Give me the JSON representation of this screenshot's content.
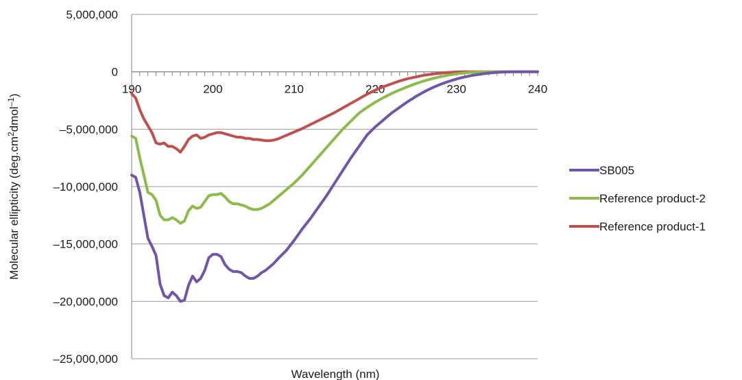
{
  "chart_data": {
    "type": "line",
    "xlabel": "Wavelength (nm)",
    "ylabel_main": "Molecular ellipticity (deg.cm",
    "ylabel_sup1": "2",
    "ylabel_mid": "dmol",
    "ylabel_sup2": "–1",
    "ylabel_end": ")",
    "xlim": [
      190,
      240
    ],
    "ylim": [
      -25000000,
      5000000
    ],
    "x_ticks": [
      190,
      200,
      210,
      220,
      230,
      240
    ],
    "x_tick_labels": [
      "190",
      "200",
      "210",
      "220",
      "230",
      "240"
    ],
    "y_ticks": [
      5000000,
      0,
      -5000000,
      -10000000,
      -15000000,
      -20000000,
      -25000000
    ],
    "y_tick_labels": [
      "5,000,000",
      "0",
      "–5,000,000",
      "–10,000,000",
      "–15,000,000",
      "–20,000,000",
      "–25,000,000"
    ],
    "grid": true,
    "legend_position": "right",
    "series": [
      {
        "name": "SB005",
        "color": "#7055a8",
        "x": [
          190,
          190.5,
          191,
          191.5,
          192,
          192.5,
          193,
          193.5,
          194,
          194.5,
          195,
          195.5,
          196,
          196.5,
          197,
          197.5,
          198,
          198.5,
          199,
          199.5,
          200,
          200.5,
          201,
          201.5,
          202,
          202.5,
          203,
          203.5,
          204,
          204.5,
          205,
          205.5,
          206,
          206.5,
          207,
          207.5,
          208,
          209,
          210,
          211,
          212,
          213,
          214,
          215,
          216,
          217,
          218,
          219,
          220,
          221,
          222,
          223,
          224,
          225,
          226,
          227,
          228,
          229,
          230,
          231,
          232,
          233,
          234,
          235,
          236,
          237,
          238,
          239,
          240
        ],
        "y": [
          -9000000,
          -9200000,
          -10500000,
          -12500000,
          -14500000,
          -15200000,
          -16000000,
          -18500000,
          -19500000,
          -19700000,
          -19200000,
          -19500000,
          -20000000,
          -19900000,
          -18600000,
          -17800000,
          -18300000,
          -18000000,
          -17300000,
          -16200000,
          -15900000,
          -15900000,
          -16100000,
          -16800000,
          -17200000,
          -17400000,
          -17400000,
          -17500000,
          -17800000,
          -18000000,
          -18000000,
          -17800000,
          -17500000,
          -17300000,
          -17000000,
          -16700000,
          -16300000,
          -15600000,
          -14700000,
          -13700000,
          -12800000,
          -11800000,
          -10800000,
          -9700000,
          -8600000,
          -7500000,
          -6500000,
          -5500000,
          -4800000,
          -4200000,
          -3600000,
          -3100000,
          -2600000,
          -2150000,
          -1750000,
          -1400000,
          -1100000,
          -850000,
          -630000,
          -450000,
          -310000,
          -200000,
          -110000,
          -50000,
          -15000,
          0,
          0,
          0,
          0
        ]
      },
      {
        "name": "Reference product-2",
        "color": "#8cbb4a",
        "x": [
          190,
          190.5,
          191,
          191.5,
          192,
          192.5,
          193,
          193.5,
          194,
          194.5,
          195,
          195.5,
          196,
          196.5,
          197,
          197.5,
          198,
          198.5,
          199,
          199.5,
          200,
          200.5,
          201,
          201.5,
          202,
          202.5,
          203,
          203.5,
          204,
          204.5,
          205,
          205.5,
          206,
          206.5,
          207,
          207.5,
          208,
          209,
          210,
          211,
          212,
          213,
          214,
          215,
          216,
          217,
          218,
          219,
          220,
          221,
          222,
          223,
          224,
          225,
          226,
          227,
          228,
          229,
          230,
          231,
          232,
          233,
          234,
          235,
          236,
          237,
          238,
          239,
          240
        ],
        "y": [
          -5600000,
          -5800000,
          -7500000,
          -9000000,
          -10500000,
          -10700000,
          -11200000,
          -12500000,
          -12900000,
          -12900000,
          -12700000,
          -12900000,
          -13200000,
          -13000000,
          -12100000,
          -11700000,
          -11900000,
          -11800000,
          -11300000,
          -10800000,
          -10700000,
          -10700000,
          -10600000,
          -10900000,
          -11300000,
          -11500000,
          -11500000,
          -11600000,
          -11700000,
          -11900000,
          -12000000,
          -12000000,
          -11900000,
          -11700000,
          -11500000,
          -11200000,
          -10900000,
          -10300000,
          -9700000,
          -9000000,
          -8200000,
          -7400000,
          -6600000,
          -5800000,
          -5000000,
          -4300000,
          -3600000,
          -3100000,
          -2650000,
          -2250000,
          -1900000,
          -1580000,
          -1300000,
          -1030000,
          -800000,
          -600000,
          -430000,
          -290000,
          -180000,
          -100000,
          -40000,
          -10000,
          0,
          0,
          0,
          0,
          0,
          0,
          0
        ]
      },
      {
        "name": "Reference product-1",
        "color": "#c0504d",
        "x": [
          190,
          190.5,
          191,
          191.5,
          192,
          192.5,
          193,
          193.5,
          194,
          194.5,
          195,
          195.5,
          196,
          196.5,
          197,
          197.5,
          198,
          198.5,
          199,
          199.5,
          200,
          200.5,
          201,
          201.5,
          202,
          202.5,
          203,
          203.5,
          204,
          204.5,
          205,
          205.5,
          206,
          206.5,
          207,
          207.5,
          208,
          209,
          210,
          211,
          212,
          213,
          214,
          215,
          216,
          217,
          218,
          219,
          220,
          221,
          222,
          223,
          224,
          225,
          226,
          227,
          228,
          229,
          230,
          231,
          232,
          233,
          234,
          235,
          236,
          237,
          238,
          239,
          240
        ],
        "y": [
          -1900000,
          -2300000,
          -3300000,
          -4100000,
          -4700000,
          -5300000,
          -6200000,
          -6300000,
          -6200000,
          -6500000,
          -6500000,
          -6700000,
          -7000000,
          -6500000,
          -5900000,
          -5600000,
          -5500000,
          -5800000,
          -5700000,
          -5500000,
          -5400000,
          -5300000,
          -5300000,
          -5400000,
          -5500000,
          -5600000,
          -5700000,
          -5700000,
          -5800000,
          -5800000,
          -5900000,
          -5900000,
          -5950000,
          -6000000,
          -6000000,
          -5950000,
          -5850000,
          -5550000,
          -5250000,
          -4950000,
          -4600000,
          -4250000,
          -3900000,
          -3550000,
          -3150000,
          -2750000,
          -2350000,
          -1950000,
          -1600000,
          -1300000,
          -1050000,
          -800000,
          -600000,
          -450000,
          -300000,
          -200000,
          -120000,
          -60000,
          -20000,
          0,
          0,
          0,
          0,
          0,
          0,
          0,
          0,
          0,
          0
        ]
      }
    ]
  }
}
